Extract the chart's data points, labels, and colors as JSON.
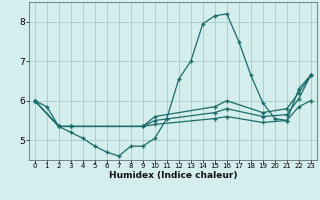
{
  "xlabel": "Humidex (Indice chaleur)",
  "bg_color": "#d4eeed",
  "grid_color": "#aacfcf",
  "line_color": "#1a6b6b",
  "xlim": [
    -0.5,
    23.5
  ],
  "ylim": [
    4.5,
    8.5
  ],
  "yticks": [
    5,
    6,
    7,
    8
  ],
  "xticks": [
    0,
    1,
    2,
    3,
    4,
    5,
    6,
    7,
    8,
    9,
    10,
    11,
    12,
    13,
    14,
    15,
    16,
    17,
    18,
    19,
    20,
    21,
    22,
    23
  ],
  "lines": [
    {
      "x": [
        0,
        1,
        2,
        3,
        4,
        5,
        6,
        7,
        8,
        9,
        10,
        11,
        12,
        13,
        14,
        15,
        16,
        17,
        18,
        19,
        20,
        21,
        22,
        23
      ],
      "y": [
        6.0,
        5.85,
        5.35,
        5.2,
        5.05,
        4.85,
        4.7,
        4.6,
        4.85,
        4.85,
        5.05,
        5.55,
        6.55,
        7.0,
        7.95,
        8.15,
        8.2,
        7.5,
        6.65,
        5.95,
        5.55,
        5.5,
        6.3,
        6.65
      ]
    },
    {
      "x": [
        0,
        2,
        3,
        9,
        10,
        15,
        16,
        19,
        21,
        22,
        23
      ],
      "y": [
        6.0,
        5.35,
        5.35,
        5.35,
        5.4,
        5.55,
        5.6,
        5.45,
        5.5,
        5.85,
        6.0
      ]
    },
    {
      "x": [
        0,
        2,
        3,
        9,
        10,
        15,
        16,
        19,
        21,
        22,
        23
      ],
      "y": [
        6.0,
        5.35,
        5.35,
        5.35,
        5.5,
        5.7,
        5.8,
        5.6,
        5.65,
        6.05,
        6.65
      ]
    },
    {
      "x": [
        0,
        2,
        3,
        9,
        10,
        15,
        16,
        19,
        21,
        22,
        23
      ],
      "y": [
        6.0,
        5.35,
        5.35,
        5.35,
        5.6,
        5.85,
        6.0,
        5.7,
        5.8,
        6.2,
        6.65
      ]
    }
  ]
}
